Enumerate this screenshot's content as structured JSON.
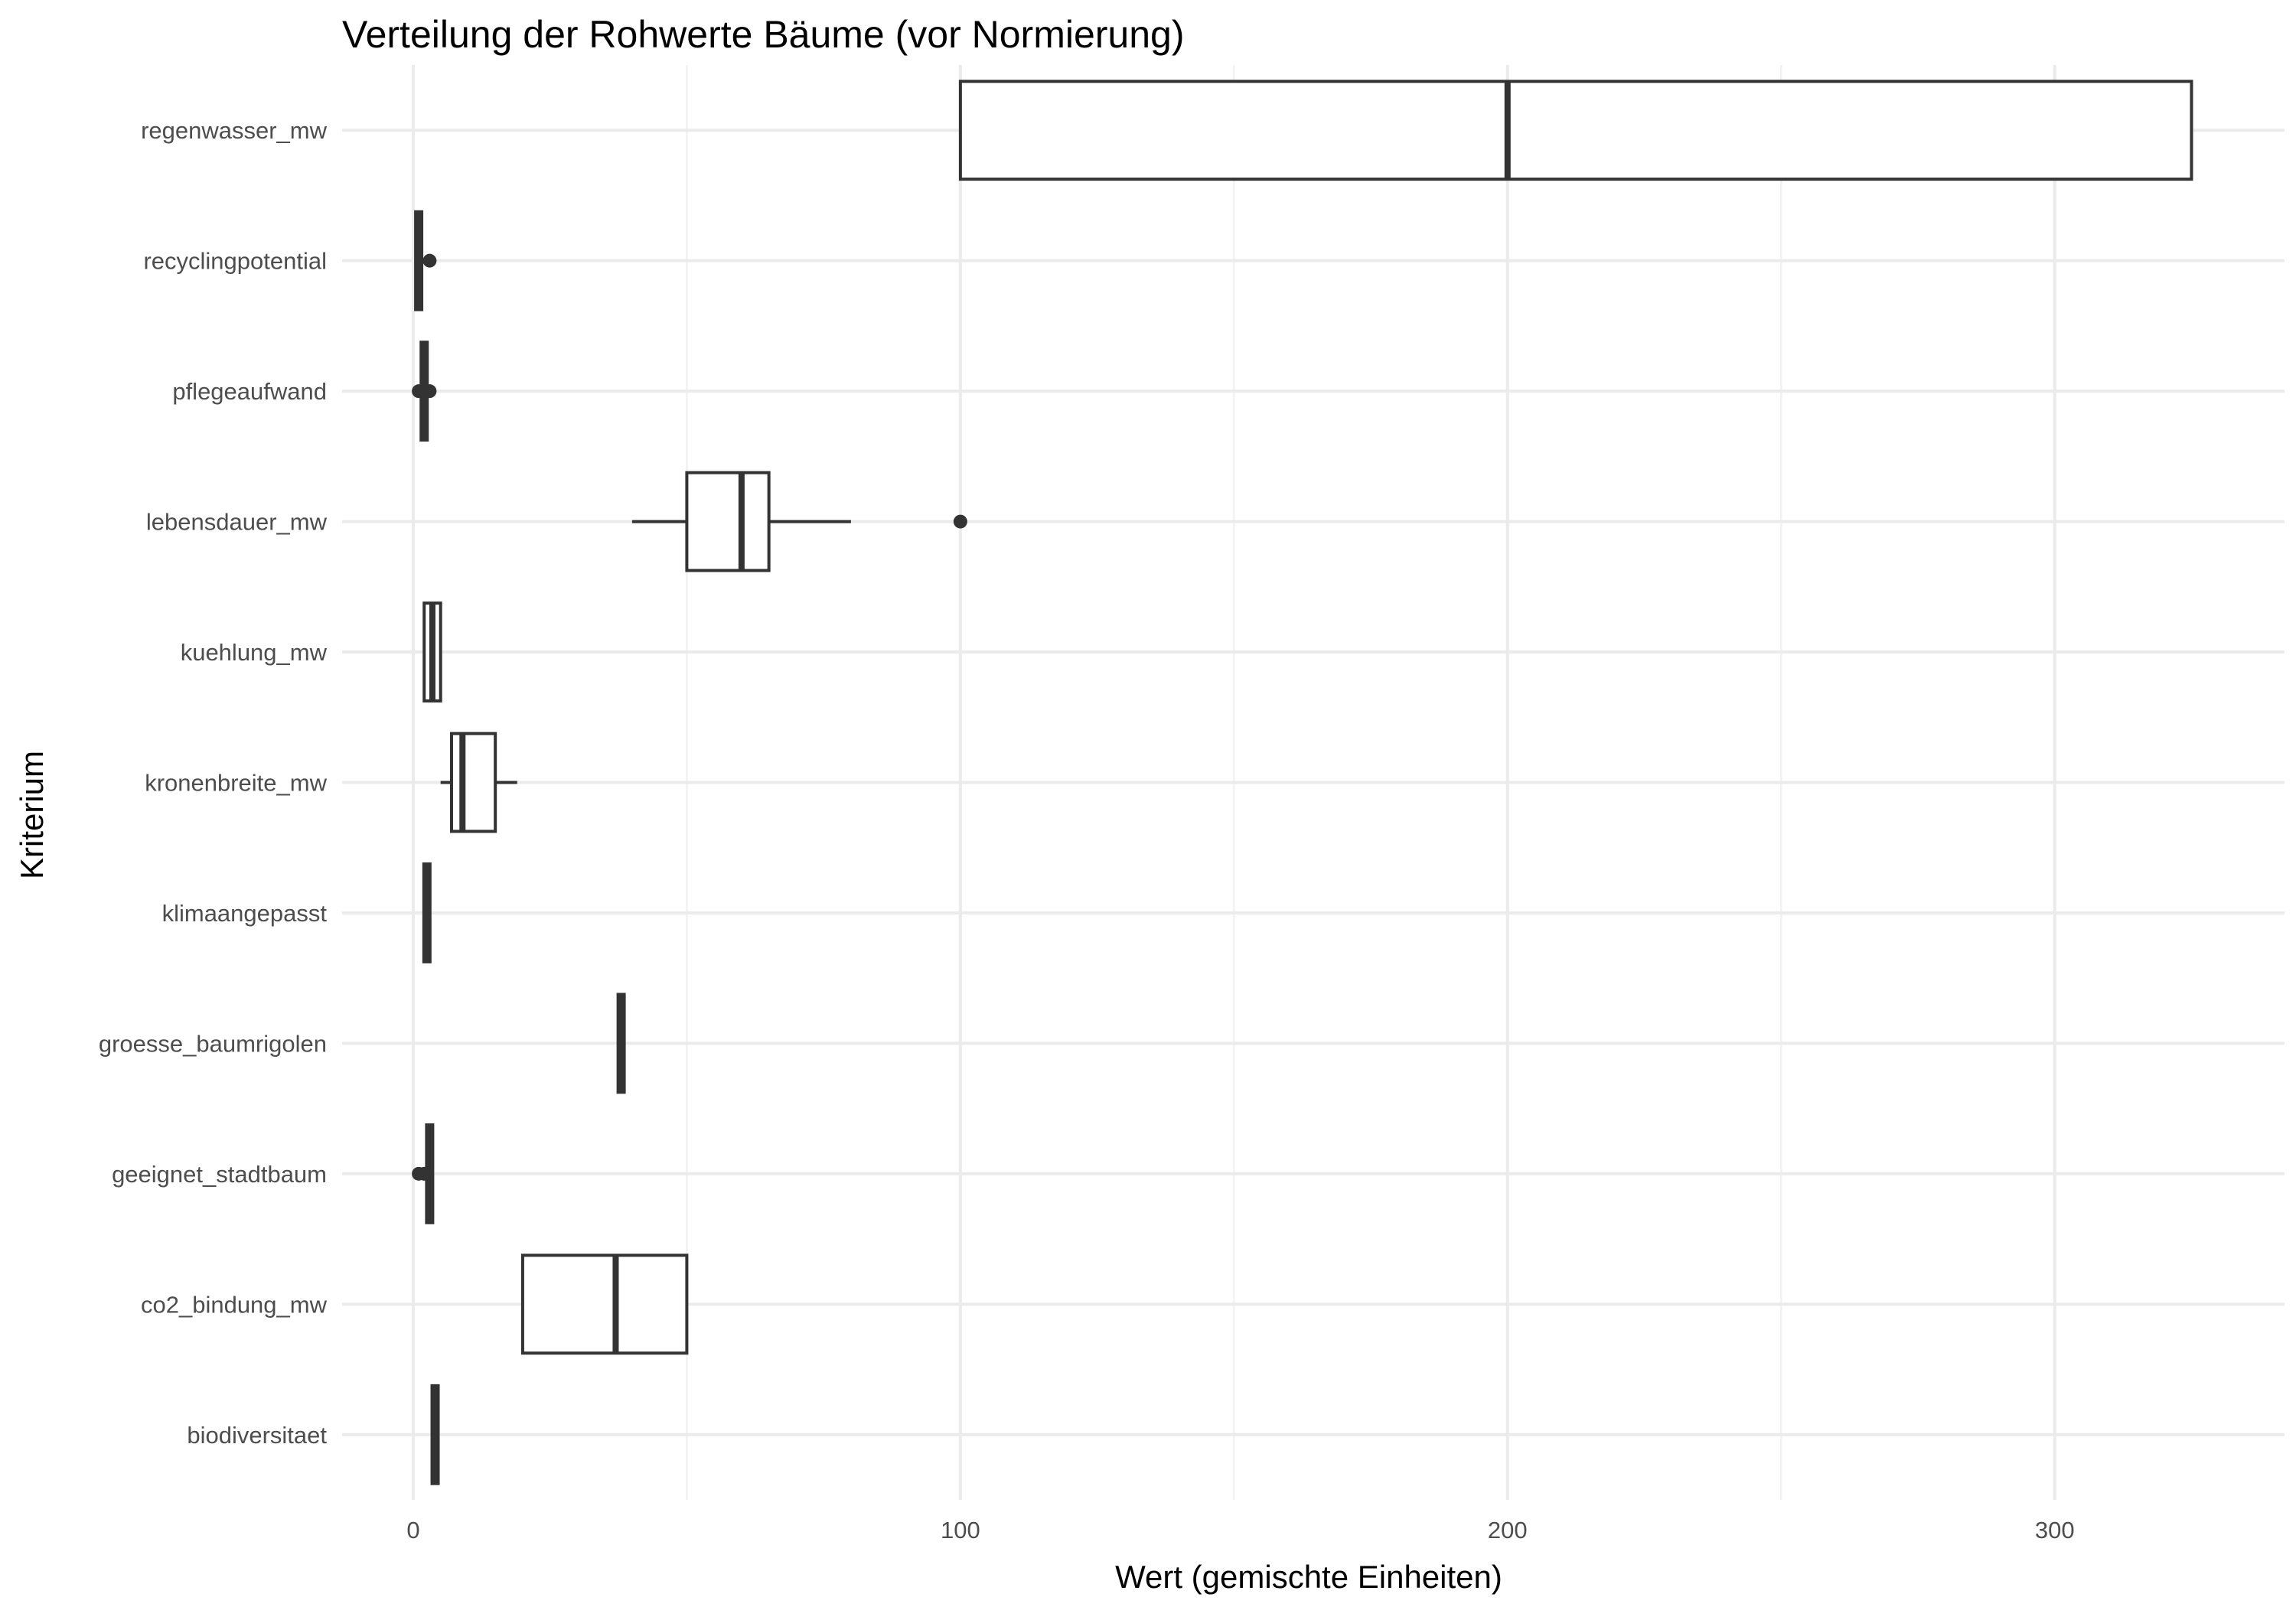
{
  "chart_data": {
    "type": "boxplot",
    "orientation": "horizontal",
    "title": "Verteilung der Rohwerte Bäume (vor Normierung)",
    "xlabel": "Wert (gemischte Einheiten)",
    "ylabel": "Kriterium",
    "xlim": [
      -13,
      342
    ],
    "x_ticks": [
      0,
      100,
      200,
      300
    ],
    "x_tick_labels": [
      "0",
      "100",
      "200",
      "300"
    ],
    "grid": true,
    "legend": "none",
    "colors": {
      "box_stroke": "#333333",
      "box_fill": "#ffffff",
      "grid": "#ebebeb",
      "tick_text": "#4d4d4d"
    },
    "categories": [
      "regenwasser_mw",
      "recyclingpotential",
      "pflegeaufwand",
      "lebensdauer_mw",
      "kuehlung_mw",
      "kronenbreite_mw",
      "klimaangepasst",
      "groesse_baumrigolen",
      "geeignet_stadtbaum",
      "co2_bindung_mw",
      "biodiversitaet"
    ],
    "boxes": [
      {
        "label": "regenwasser_mw",
        "min": 100,
        "q1": 100,
        "median": 200,
        "q3": 325,
        "max": 325,
        "outliers": []
      },
      {
        "label": "recyclingpotential",
        "min": 1,
        "q1": 1,
        "median": 1,
        "q3": 1,
        "max": 1,
        "outliers": [
          3
        ]
      },
      {
        "label": "pflegeaufwand",
        "min": 2,
        "q1": 2,
        "median": 2,
        "q3": 2,
        "max": 2,
        "outliers": [
          1,
          3
        ]
      },
      {
        "label": "lebensdauer_mw",
        "min": 40,
        "q1": 50,
        "median": 60,
        "q3": 65,
        "max": 80,
        "outliers": [
          100
        ]
      },
      {
        "label": "kuehlung_mw",
        "min": 2,
        "q1": 2,
        "median": 3.5,
        "q3": 5,
        "max": 5,
        "outliers": []
      },
      {
        "label": "kronenbreite_mw",
        "min": 5,
        "q1": 7,
        "median": 9,
        "q3": 15,
        "max": 19,
        "outliers": []
      },
      {
        "label": "klimaangepasst",
        "min": 2,
        "q1": 2,
        "median": 2.5,
        "q3": 3,
        "max": 3,
        "outliers": []
      },
      {
        "label": "groesse_baumrigolen",
        "min": 38,
        "q1": 38,
        "median": 38,
        "q3": 38,
        "max": 38,
        "outliers": []
      },
      {
        "label": "geeignet_stadtbaum",
        "min": 3,
        "q1": 3,
        "median": 3,
        "q3": 3,
        "max": 3,
        "outliers": [
          1,
          2
        ]
      },
      {
        "label": "co2_bindung_mw",
        "min": 20,
        "q1": 20,
        "median": 37,
        "q3": 50,
        "max": 50,
        "outliers": []
      },
      {
        "label": "biodiversitaet",
        "min": 4,
        "q1": 4,
        "median": 4,
        "q3": 4,
        "max": 4,
        "outliers": []
      }
    ]
  }
}
